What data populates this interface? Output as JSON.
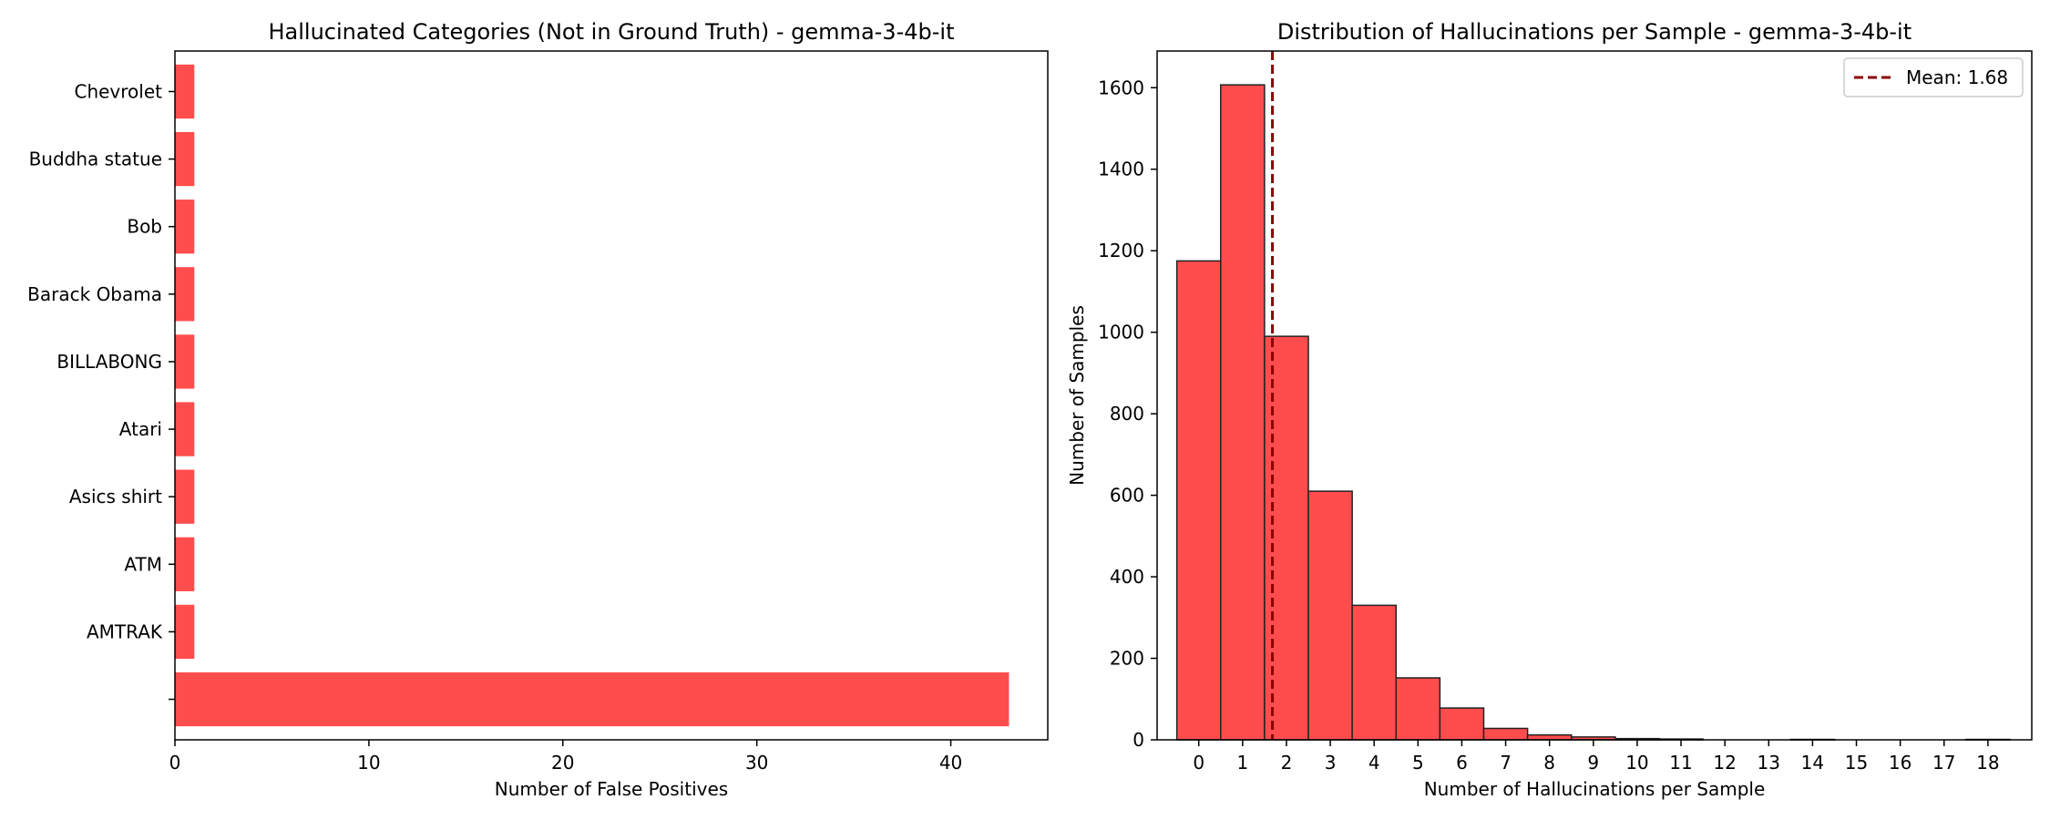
{
  "colors": {
    "bar": "#ff4d4d",
    "bar_edge": "#222222",
    "mean_line": "#8b0000",
    "axis": "#000000"
  },
  "chart_data": [
    {
      "type": "bar",
      "orientation": "horizontal",
      "title": "Hallucinated Categories (Not in Ground Truth) - gemma-3-4b-it",
      "xlabel": "Number of False Positives",
      "ylabel": "",
      "categories": [
        "",
        "AMTRAK",
        "ATM",
        "Asics shirt",
        "Atari",
        "BILLABONG",
        "Barack Obama",
        "Bob",
        "Buddha statue",
        "Chevrolet"
      ],
      "values": [
        43,
        1,
        1,
        1,
        1,
        1,
        1,
        1,
        1,
        1
      ],
      "xlim": [
        0,
        45
      ],
      "xticks": [
        0,
        10,
        20,
        30,
        40
      ],
      "grid": false
    },
    {
      "type": "bar",
      "subtype": "histogram",
      "title": "Distribution of Hallucinations per Sample - gemma-3-4b-it",
      "xlabel": "Number of Hallucinations per Sample",
      "ylabel": "Number of Samples",
      "x": [
        0,
        1,
        2,
        3,
        4,
        5,
        6,
        7,
        8,
        9,
        10,
        11,
        12,
        13,
        14,
        15,
        16,
        17,
        18
      ],
      "values": [
        1175,
        1607,
        990,
        610,
        330,
        152,
        78,
        28,
        12,
        7,
        3,
        2,
        0,
        0,
        1,
        0,
        0,
        0,
        1
      ],
      "xlim": [
        -0.95,
        19.0
      ],
      "ylim": [
        0,
        1690
      ],
      "yticks": [
        0,
        200,
        400,
        600,
        800,
        1000,
        1200,
        1400,
        1600
      ],
      "mean": 1.68,
      "legend": {
        "label": "Mean: 1.68",
        "position": "top-right"
      },
      "grid": false
    }
  ]
}
